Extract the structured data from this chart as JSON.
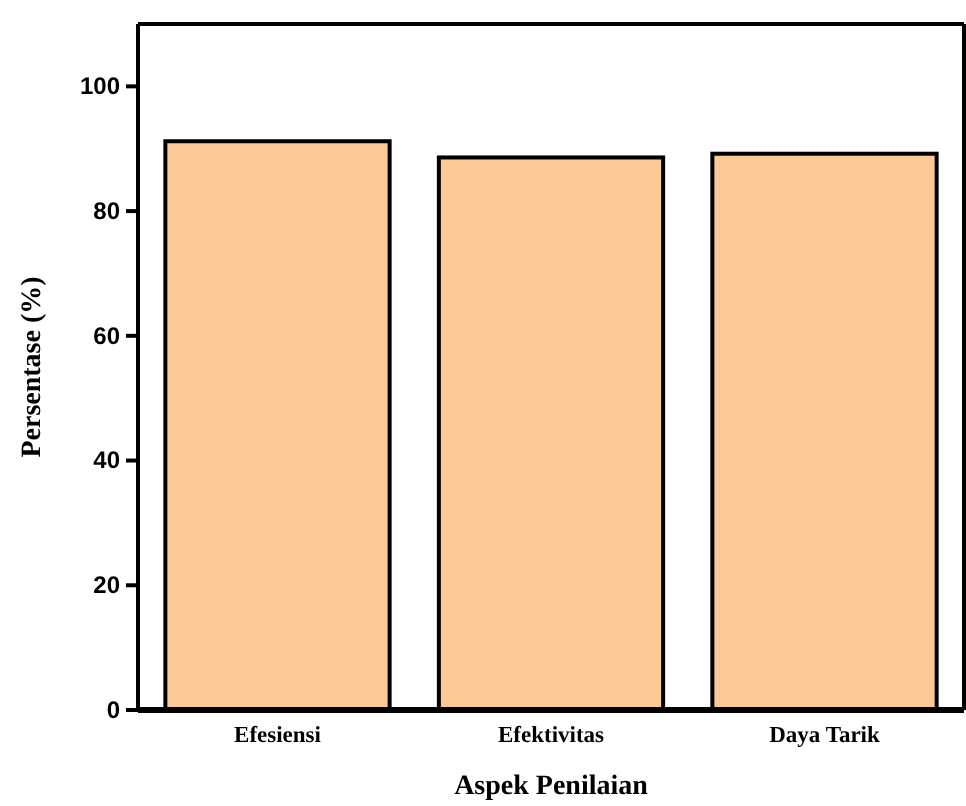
{
  "chart_data": {
    "type": "bar",
    "xlabel": "Aspek Penilaian",
    "ylabel": "Persentase (%)",
    "categories": [
      "Efesiensi",
      "Efektivitas",
      "Daya Tarik"
    ],
    "values": [
      91.2,
      88.6,
      89.2
    ],
    "color": "#fbc897",
    "ylim": [
      0,
      110
    ],
    "yticks": [
      0,
      20,
      40,
      60,
      80,
      100
    ],
    "grid": false,
    "legend": false
  }
}
